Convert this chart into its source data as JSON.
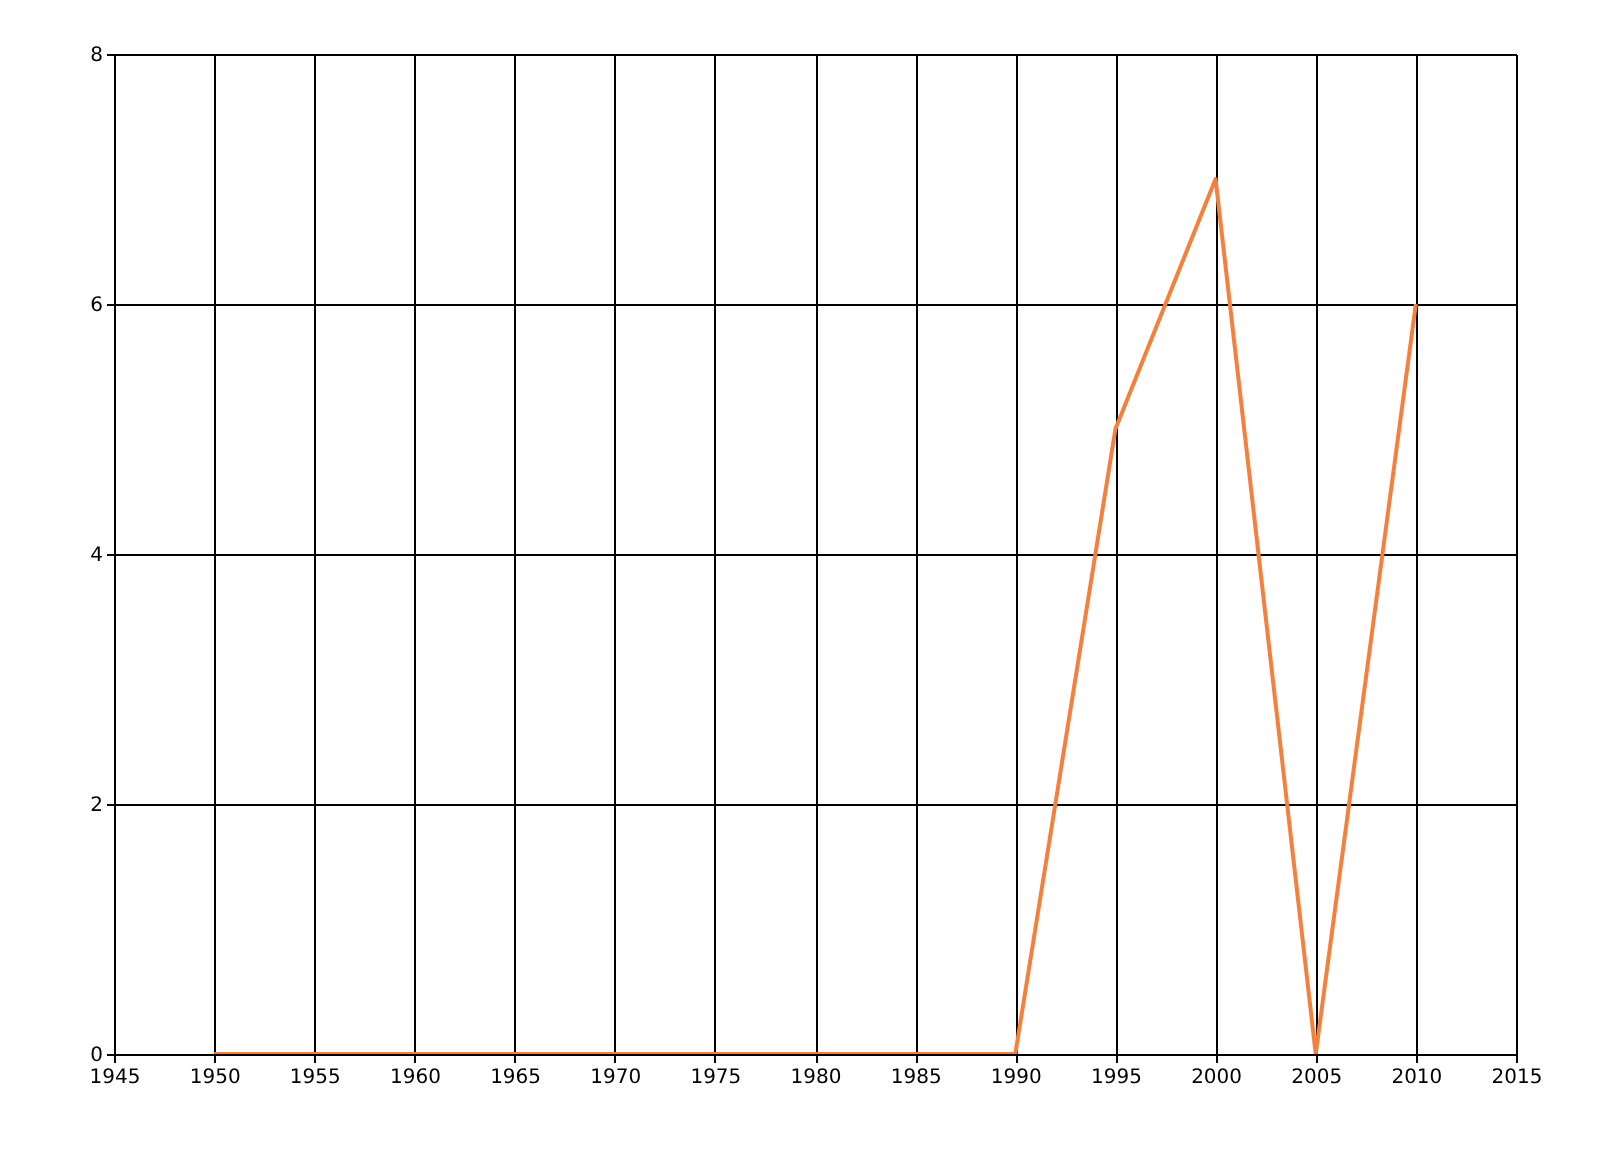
{
  "chart_data": {
    "type": "line",
    "x": [
      1950,
      1955,
      1960,
      1965,
      1970,
      1975,
      1980,
      1985,
      1990,
      1995,
      2000,
      2005,
      2010
    ],
    "series": [
      {
        "color": "#f5803e",
        "values": [
          0,
          0,
          0,
          0,
          0,
          0,
          0,
          0,
          0,
          5,
          7,
          0,
          6
        ]
      }
    ],
    "xlim": [
      1945,
      2015
    ],
    "xticks": [
      1945,
      1950,
      1955,
      1960,
      1965,
      1970,
      1975,
      1980,
      1985,
      1990,
      1995,
      2000,
      2005,
      2010,
      2015
    ],
    "ylim": [
      0,
      8
    ],
    "yticks": [
      0,
      2,
      4,
      6,
      8
    ],
    "grid": true,
    "legend": false,
    "marker": "none",
    "line_style": "solid"
  }
}
